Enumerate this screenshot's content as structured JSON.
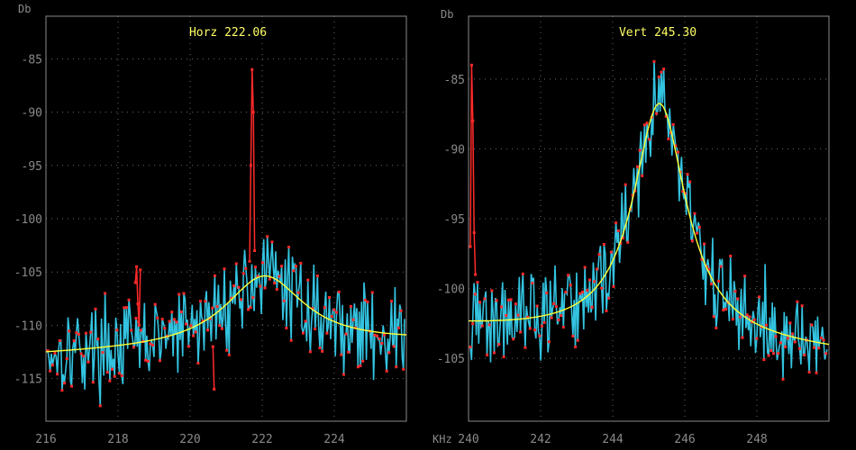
{
  "chart_data": [
    {
      "type": "line",
      "title": "Horz  222.06",
      "ylabel": "Db",
      "xlabel": "",
      "xlim": [
        216,
        226
      ],
      "ylim": [
        -119,
        -81
      ],
      "x_ticks": [
        216,
        218,
        220,
        222,
        224
      ],
      "y_ticks": [
        -85,
        -90,
        -95,
        -100,
        -105,
        -110,
        -115
      ],
      "grid": true,
      "series": [
        {
          "role": "measurement",
          "color": "#33c3e0",
          "marker_color": "#ff2a2a",
          "noise_seed": 17,
          "noise_amplitude": 2.0,
          "trace": {
            "x_start": 216.05,
            "x_end": 225.95,
            "count": 300
          }
        },
        {
          "role": "fit",
          "color": "#ffff33",
          "lorentz": {
            "center": 222.06,
            "width": 1.35,
            "height": 6.7,
            "baseline": -112.8,
            "slope": 0.12
          }
        }
      ],
      "spurs": [
        {
          "x": 218.55,
          "values": [
            -106,
            -104.5,
            -108,
            -110,
            -104.8
          ]
        },
        {
          "x": 220.65,
          "values": [
            -112,
            -116
          ]
        },
        {
          "x": 221.72,
          "values": [
            -104,
            -95,
            -86,
            -90,
            -103
          ]
        }
      ]
    },
    {
      "type": "line",
      "title": "Vert  245.30",
      "ylabel": "Db",
      "xlabel": "KHz",
      "xlim": [
        240,
        250
      ],
      "ylim": [
        -109.5,
        -80.5
      ],
      "x_ticks": [
        240,
        242,
        244,
        246,
        248
      ],
      "y_ticks": [
        -85,
        -90,
        -95,
        -100,
        -105
      ],
      "grid": true,
      "series": [
        {
          "role": "measurement",
          "color": "#33c3e0",
          "marker_color": "#ff2a2a",
          "noise_seed": 42,
          "noise_amplitude": 1.6,
          "trace": {
            "x_start": 240.05,
            "x_end": 249.95,
            "count": 300
          }
        },
        {
          "role": "fit",
          "color": "#ffff33",
          "lorentz": {
            "center": 245.3,
            "width": 0.9,
            "height": 17.0,
            "baseline": -102.8,
            "slope": -0.18
          }
        }
      ],
      "spurs": [
        {
          "x": 240.12,
          "values": [
            -97,
            -84,
            -88,
            -96,
            -99
          ]
        }
      ]
    }
  ]
}
